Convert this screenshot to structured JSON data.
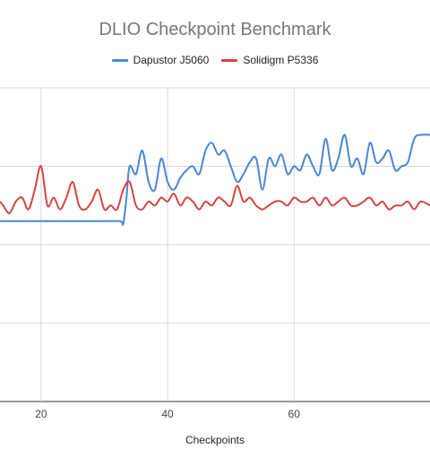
{
  "chart_data": {
    "type": "line",
    "title": "DLIO Checkpoint Benchmark",
    "xlabel": "Checkpoints",
    "ylabel": "",
    "x_ticks": [
      20,
      40,
      60
    ],
    "xlim": [
      13.5,
      81.5
    ],
    "ylim": [
      0,
      4
    ],
    "grid": true,
    "legend_position": "top",
    "series": [
      {
        "name": "Dapustor J5060",
        "color": "#4a86d4",
        "x": [
          13.5,
          20,
          25,
          30,
          32.5,
          33,
          33.5,
          34,
          35,
          36,
          37,
          38,
          39,
          40,
          41,
          42,
          43,
          44,
          45,
          46,
          47,
          48,
          49,
          50,
          51,
          52,
          53,
          54,
          55,
          56,
          57,
          58,
          59,
          60,
          61,
          62,
          63,
          64,
          65,
          66,
          67,
          68,
          69,
          70,
          71,
          72,
          73,
          74,
          75,
          76,
          77,
          78,
          79,
          80,
          81.5
        ],
        "y": [
          2.3,
          2.3,
          2.3,
          2.3,
          2.3,
          2.27,
          2.6,
          3.0,
          2.9,
          3.2,
          2.8,
          2.7,
          3.1,
          2.8,
          2.7,
          2.85,
          2.95,
          3.0,
          2.9,
          3.2,
          3.3,
          3.15,
          3.2,
          3.0,
          2.8,
          2.9,
          3.05,
          3.1,
          2.7,
          3.1,
          3.0,
          3.15,
          2.9,
          3.0,
          2.95,
          3.15,
          3.0,
          2.9,
          3.35,
          2.95,
          3.1,
          3.4,
          3.0,
          3.1,
          2.9,
          3.3,
          3.05,
          3.1,
          3.2,
          2.95,
          3.0,
          3.05,
          3.35,
          3.4,
          3.4
        ]
      },
      {
        "name": "Solidigm P5336",
        "color": "#d6453d",
        "x": [
          13.5,
          14,
          15,
          16,
          17,
          18,
          19,
          20,
          21,
          22,
          23,
          24,
          25,
          26,
          27,
          28,
          29,
          30,
          31,
          32,
          33,
          34,
          35,
          36,
          37,
          38,
          39,
          40,
          41,
          42,
          43,
          44,
          45,
          46,
          47,
          48,
          49,
          50,
          51,
          52,
          53,
          54,
          55,
          56,
          57,
          58,
          59,
          60,
          61,
          62,
          63,
          64,
          65,
          66,
          67,
          68,
          69,
          70,
          71,
          72,
          73,
          74,
          75,
          76,
          77,
          78,
          79,
          80,
          81.5
        ],
        "y": [
          2.55,
          2.5,
          2.4,
          2.55,
          2.6,
          2.45,
          2.7,
          3.0,
          2.5,
          2.6,
          2.45,
          2.6,
          2.8,
          2.5,
          2.45,
          2.55,
          2.7,
          2.45,
          2.5,
          2.45,
          2.7,
          2.8,
          2.5,
          2.45,
          2.55,
          2.5,
          2.6,
          2.55,
          2.65,
          2.5,
          2.6,
          2.55,
          2.45,
          2.55,
          2.5,
          2.6,
          2.55,
          2.5,
          2.75,
          2.55,
          2.6,
          2.5,
          2.45,
          2.5,
          2.55,
          2.55,
          2.5,
          2.6,
          2.55,
          2.55,
          2.6,
          2.5,
          2.6,
          2.5,
          2.55,
          2.6,
          2.5,
          2.5,
          2.55,
          2.6,
          2.5,
          2.55,
          2.45,
          2.5,
          2.5,
          2.55,
          2.45,
          2.55,
          2.5
        ]
      }
    ]
  }
}
